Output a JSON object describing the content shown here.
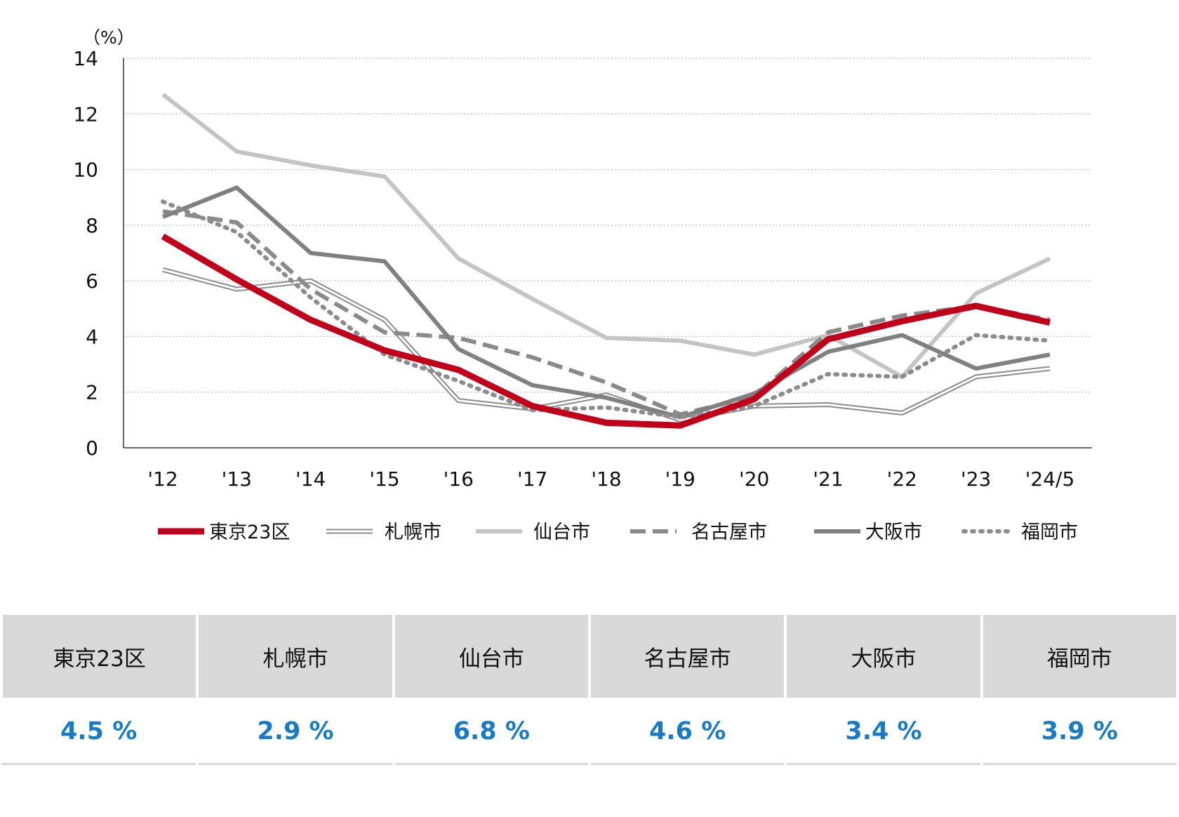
{
  "chart_data": {
    "type": "line",
    "unit_label": "（%）",
    "x": [
      "'12",
      "'13",
      "'14",
      "'15",
      "'16",
      "'17",
      "'18",
      "'19",
      "'20",
      "'21",
      "'22",
      "'23",
      "'24/5"
    ],
    "ylim": [
      0,
      14
    ],
    "yticks": [
      0,
      2,
      4,
      6,
      8,
      10,
      12,
      14
    ],
    "grid": true,
    "legend_position": "bottom",
    "series": [
      {
        "name": "札幌市",
        "style": "double",
        "color": "#8c8c8c",
        "values": [
          6.4,
          5.7,
          6.0,
          4.6,
          1.7,
          1.4,
          1.9,
          1.0,
          1.5,
          1.55,
          1.25,
          2.55,
          2.85
        ]
      },
      {
        "name": "仙台市",
        "style": "solid",
        "color": "#c4c4c4",
        "values": [
          12.7,
          10.65,
          10.15,
          9.75,
          6.8,
          5.35,
          3.95,
          3.85,
          3.35,
          4.05,
          2.55,
          5.55,
          6.8
        ]
      },
      {
        "name": "名古屋市",
        "style": "dashed",
        "color": "#8a8a8a",
        "values": [
          8.5,
          8.1,
          5.7,
          4.15,
          3.95,
          3.25,
          2.35,
          1.2,
          1.85,
          4.15,
          4.75,
          5.1,
          4.6
        ]
      },
      {
        "name": "大阪市",
        "style": "solid",
        "color": "#808080",
        "values": [
          8.3,
          9.35,
          7.0,
          6.7,
          3.55,
          2.25,
          1.8,
          1.1,
          1.95,
          3.45,
          4.05,
          2.85,
          3.35
        ]
      },
      {
        "name": "福岡市",
        "style": "dotted",
        "color": "#8c8c8c",
        "values": [
          8.85,
          7.75,
          5.4,
          3.35,
          2.4,
          1.35,
          1.45,
          1.1,
          1.5,
          2.65,
          2.55,
          4.05,
          3.85
        ]
      },
      {
        "name": "東京23区",
        "style": "bold",
        "color": "#c0001a",
        "values": [
          7.6,
          6.05,
          4.6,
          3.5,
          2.8,
          1.5,
          0.9,
          0.8,
          1.75,
          3.9,
          4.55,
          5.1,
          4.5
        ]
      }
    ],
    "legend_order": [
      "東京23区",
      "札幌市",
      "仙台市",
      "名古屋市",
      "大阪市",
      "福岡市"
    ]
  },
  "summary_table": {
    "headers": [
      "東京23区",
      "札幌市",
      "仙台市",
      "名古屋市",
      "大阪市",
      "福岡市"
    ],
    "values": [
      "4.5 %",
      "2.9 %",
      "6.8 %",
      "4.6 %",
      "3.4 %",
      "3.9 %"
    ],
    "value_color": "#1a7ac4"
  }
}
